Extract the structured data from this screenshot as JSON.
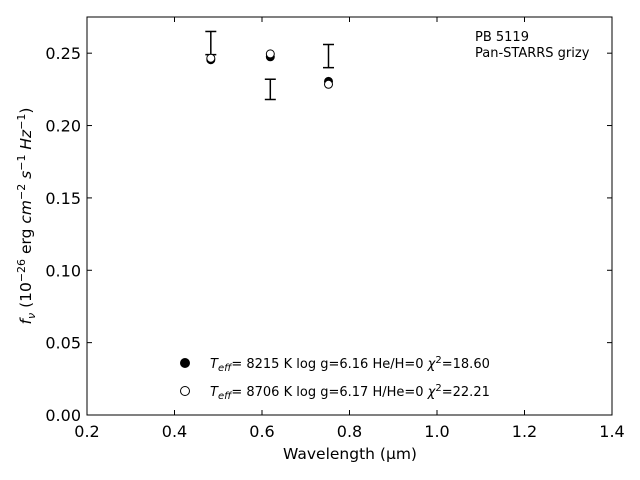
{
  "chart_data": {
    "type": "scatter",
    "xlabel": "Wavelength (μm)",
    "ylabel": "f_ν (10^-26 erg cm^-2 s^-1 Hz^-1)",
    "xlim": [
      0.2,
      1.4
    ],
    "ylim": [
      0.0,
      0.275
    ],
    "x_ticks": [
      "0.2",
      "0.4",
      "0.6",
      "0.8",
      "1.0",
      "1.2",
      "1.4"
    ],
    "y_ticks": [
      "0.00",
      "0.05",
      "0.10",
      "0.15",
      "0.20",
      "0.25"
    ],
    "annotations": [
      "PB 5119",
      "Pan-STARRS grizy"
    ],
    "legend_position": "lower-center",
    "observed": {
      "x": [
        0.483,
        0.619,
        0.752
      ],
      "y": [
        0.257,
        0.225,
        0.248
      ],
      "yerr": [
        0.008,
        0.007,
        0.008
      ]
    },
    "series": [
      {
        "marker": "filled-circle",
        "x": [
          0.483,
          0.619,
          0.752
        ],
        "y": [
          0.2455,
          0.2475,
          0.2305
        ],
        "legend": {
          "teff_value": "=  8215 K",
          "logg": "log g=6.16",
          "ratio": "He/H=0",
          "chi2_value": "=18.60"
        }
      },
      {
        "marker": "open-circle",
        "x": [
          0.483,
          0.619,
          0.752
        ],
        "y": [
          0.2465,
          0.2495,
          0.2285
        ],
        "legend": {
          "teff_value": "=  8706 K",
          "logg": "log g=6.17",
          "ratio": "H/He=0",
          "chi2_value": "=22.21"
        }
      }
    ]
  }
}
